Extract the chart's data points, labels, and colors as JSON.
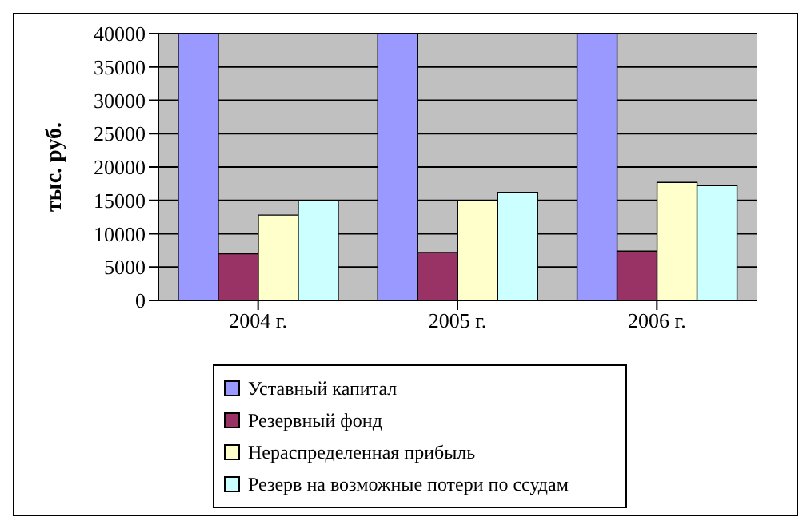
{
  "chart_data": {
    "type": "bar",
    "ylabel": "тыс. руб.",
    "categories": [
      "2004 г.",
      "2005 г.",
      "2006 г."
    ],
    "series": [
      {
        "name": "Уставный капитал",
        "color": "#9999ff",
        "values": [
          40000,
          40000,
          40000
        ]
      },
      {
        "name": "Резервный фонд",
        "color": "#993366",
        "values": [
          7000,
          7200,
          7400
        ]
      },
      {
        "name": "Нераспределенная прибыль",
        "color": "#ffffcc",
        "values": [
          12800,
          15000,
          17700
        ]
      },
      {
        "name": "Резерв на возможные потери по ссудам",
        "color": "#ccffff",
        "values": [
          15000,
          16200,
          17200
        ]
      }
    ],
    "ylim": [
      0,
      40000
    ],
    "yticks": [
      0,
      5000,
      10000,
      15000,
      20000,
      25000,
      30000,
      35000,
      40000
    ],
    "grid": "y",
    "legend": "bottom"
  }
}
